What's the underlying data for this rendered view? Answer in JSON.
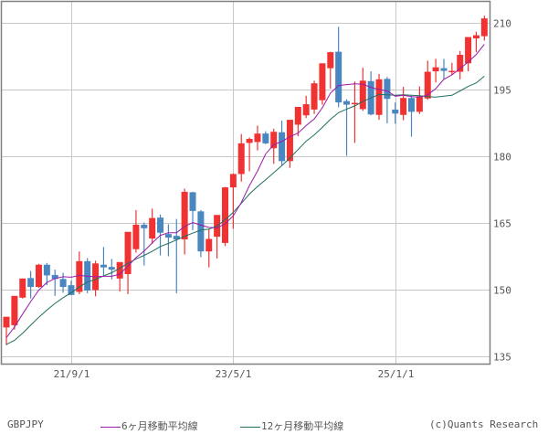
{
  "chart_data": {
    "type": "candlestick",
    "title": "",
    "symbol": "GBPJPY",
    "xlabel": "",
    "ylabel": "",
    "ylim": [
      133.5,
      215
    ],
    "yticks": [
      135,
      150,
      165,
      180,
      195,
      210
    ],
    "xticks": [
      {
        "label": "21/9/1",
        "index": 8
      },
      {
        "label": "23/5/1",
        "index": 28
      },
      {
        "label": "25/1/1",
        "index": 48
      }
    ],
    "grid": true,
    "legend_position": "bottom",
    "colors": {
      "up": "#f03232",
      "down": "#4a86c0",
      "ma6": "#9a1aaa",
      "ma12": "#1f6f5f",
      "grid": "#c8c8c8",
      "frame": "#808080"
    },
    "series": [
      {
        "name": "6ヶ月移動平均線",
        "color": "#9a1aaa"
      },
      {
        "name": "12ヶ月移動平均線",
        "color": "#1f6f5f"
      }
    ],
    "candles": [
      {
        "o": 141.5,
        "h": 142.5,
        "l": 137.5,
        "c": 143.9
      },
      {
        "o": 142.0,
        "h": 147.9,
        "l": 141.0,
        "c": 148.6
      },
      {
        "o": 148.2,
        "h": 152.5,
        "l": 148.0,
        "c": 152.5
      },
      {
        "o": 152.6,
        "h": 154.2,
        "l": 148.0,
        "c": 150.6
      },
      {
        "o": 150.6,
        "h": 155.8,
        "l": 150.4,
        "c": 155.6
      },
      {
        "o": 155.6,
        "h": 156.0,
        "l": 151.0,
        "c": 153.2
      },
      {
        "o": 153.3,
        "h": 154.5,
        "l": 148.6,
        "c": 152.4
      },
      {
        "o": 152.4,
        "h": 153.8,
        "l": 149.3,
        "c": 150.6
      },
      {
        "o": 151.0,
        "h": 152.0,
        "l": 149.1,
        "c": 148.8
      },
      {
        "o": 149.5,
        "h": 158.6,
        "l": 149.0,
        "c": 156.4
      },
      {
        "o": 156.4,
        "h": 157.1,
        "l": 149.2,
        "c": 149.8
      },
      {
        "o": 149.9,
        "h": 156.5,
        "l": 148.5,
        "c": 155.9
      },
      {
        "o": 155.6,
        "h": 159.6,
        "l": 153.2,
        "c": 155.0
      },
      {
        "o": 155.1,
        "h": 156.9,
        "l": 152.3,
        "c": 154.5
      },
      {
        "o": 152.5,
        "h": 155.5,
        "l": 149.6,
        "c": 156.2
      },
      {
        "o": 153.5,
        "h": 162.2,
        "l": 149.0,
        "c": 163.0
      },
      {
        "o": 159.1,
        "h": 167.9,
        "l": 158.3,
        "c": 164.6
      },
      {
        "o": 164.6,
        "h": 165.1,
        "l": 155.4,
        "c": 163.8
      },
      {
        "o": 161.5,
        "h": 168.2,
        "l": 160.3,
        "c": 166.1
      },
      {
        "o": 166.2,
        "h": 166.9,
        "l": 157.7,
        "c": 162.8
      },
      {
        "o": 162.5,
        "h": 164.7,
        "l": 157.5,
        "c": 161.7
      },
      {
        "o": 162.1,
        "h": 165.9,
        "l": 149.2,
        "c": 161.3
      },
      {
        "o": 161.3,
        "h": 172.7,
        "l": 157.9,
        "c": 172.0
      },
      {
        "o": 171.9,
        "h": 172.0,
        "l": 163.4,
        "c": 167.7
      },
      {
        "o": 167.6,
        "h": 167.9,
        "l": 157.3,
        "c": 158.6
      },
      {
        "o": 158.6,
        "h": 163.6,
        "l": 155.0,
        "c": 161.4
      },
      {
        "o": 161.9,
        "h": 166.4,
        "l": 157.0,
        "c": 166.8
      },
      {
        "o": 160.5,
        "h": 173.1,
        "l": 159.8,
        "c": 173.0
      },
      {
        "o": 173.0,
        "h": 176.1,
        "l": 163.7,
        "c": 176.0
      },
      {
        "o": 176.0,
        "h": 185.0,
        "l": 174.3,
        "c": 182.9
      },
      {
        "o": 183.0,
        "h": 184.2,
        "l": 176.6,
        "c": 183.9
      },
      {
        "o": 183.2,
        "h": 186.9,
        "l": 181.3,
        "c": 185.1
      },
      {
        "o": 185.1,
        "h": 185.6,
        "l": 182.7,
        "c": 182.9
      },
      {
        "o": 181.8,
        "h": 186.2,
        "l": 178.3,
        "c": 185.5
      },
      {
        "o": 185.4,
        "h": 188.0,
        "l": 178.0,
        "c": 178.9
      },
      {
        "o": 178.9,
        "h": 188.1,
        "l": 177.4,
        "c": 188.2
      },
      {
        "o": 187.1,
        "h": 190.0,
        "l": 184.5,
        "c": 191.1
      },
      {
        "o": 189.2,
        "h": 193.6,
        "l": 188.6,
        "c": 191.7
      },
      {
        "o": 190.5,
        "h": 197.0,
        "l": 189.5,
        "c": 196.4
      },
      {
        "o": 192.6,
        "h": 200.5,
        "l": 191.6,
        "c": 200.9
      },
      {
        "o": 199.8,
        "h": 203.5,
        "l": 195.2,
        "c": 203.4
      },
      {
        "o": 203.5,
        "h": 209.1,
        "l": 191.0,
        "c": 192.1
      },
      {
        "o": 192.4,
        "h": 192.8,
        "l": 180.1,
        "c": 191.6
      },
      {
        "o": 191.7,
        "h": 196.8,
        "l": 183.0,
        "c": 192.0
      },
      {
        "o": 190.6,
        "h": 199.9,
        "l": 190.2,
        "c": 197.0
      },
      {
        "o": 196.9,
        "h": 199.1,
        "l": 189.2,
        "c": 189.4
      },
      {
        "o": 189.3,
        "h": 198.5,
        "l": 188.2,
        "c": 197.3
      },
      {
        "o": 197.4,
        "h": 197.8,
        "l": 187.4,
        "c": 192.9
      },
      {
        "o": 190.5,
        "h": 192.1,
        "l": 187.3,
        "c": 189.6
      },
      {
        "o": 189.3,
        "h": 195.6,
        "l": 188.1,
        "c": 193.1
      },
      {
        "o": 193.1,
        "h": 193.6,
        "l": 184.4,
        "c": 190.0
      },
      {
        "o": 190.0,
        "h": 195.7,
        "l": 189.5,
        "c": 193.5
      },
      {
        "o": 193.0,
        "h": 201.5,
        "l": 192.7,
        "c": 199.0
      },
      {
        "o": 199.1,
        "h": 201.9,
        "l": 196.6,
        "c": 200.0
      },
      {
        "o": 199.8,
        "h": 201.9,
        "l": 197.2,
        "c": 199.2
      },
      {
        "o": 199.0,
        "h": 201.0,
        "l": 198.3,
        "c": 199.2
      },
      {
        "o": 199.0,
        "h": 203.7,
        "l": 197.3,
        "c": 202.8
      },
      {
        "o": 200.9,
        "h": 206.4,
        "l": 199.1,
        "c": 206.8
      },
      {
        "o": 206.5,
        "h": 208.0,
        "l": 203.4,
        "c": 207.2
      },
      {
        "o": 207.0,
        "h": 211.6,
        "l": 206.0,
        "c": 211.0
      }
    ],
    "ma6": [
      139.2,
      141.6,
      144.5,
      147.3,
      149.9,
      151.6,
      152.5,
      152.9,
      152.8,
      153.2,
      153.0,
      152.9,
      153.0,
      153.0,
      153.5,
      155.3,
      157.2,
      158.7,
      160.5,
      162.2,
      162.8,
      162.8,
      164.2,
      165.1,
      164.5,
      164.0,
      163.9,
      164.8,
      166.6,
      169.6,
      173.4,
      176.7,
      180.5,
      182.6,
      183.3,
      184.4,
      185.2,
      186.9,
      188.4,
      190.9,
      194.2,
      195.9,
      196.1,
      196.3,
      196.2,
      195.5,
      195.0,
      194.7,
      193.5,
      193.7,
      193.4,
      193.3,
      193.8,
      195.2,
      197.3,
      198.3,
      199.7,
      201.2,
      202.9,
      205.2
    ],
    "ma12": [
      137.7,
      138.6,
      140.2,
      142.0,
      143.8,
      145.4,
      146.9,
      148.2,
      149.3,
      150.6,
      151.7,
      152.3,
      153.1,
      153.8,
      154.8,
      155.9,
      156.9,
      157.7,
      158.6,
      159.7,
      160.4,
      161.2,
      162.0,
      162.7,
      163.4,
      163.6,
      164.3,
      165.7,
      167.4,
      169.4,
      171.5,
      173.2,
      174.7,
      176.3,
      177.9,
      179.6,
      181.5,
      183.4,
      184.8,
      186.5,
      188.3,
      189.8,
      190.6,
      191.3,
      192.3,
      193.1,
      193.9,
      193.8,
      193.7,
      193.8,
      193.7,
      193.6,
      193.4,
      193.3,
      193.5,
      193.7,
      194.7,
      195.7,
      196.5,
      198.0
    ]
  },
  "legend": {
    "symbol": "GBPJPY",
    "ma6_label": "6ヶ月移動平均線",
    "ma12_label": "12ヶ月移動平均線",
    "credit": "(c)Quants Research"
  }
}
